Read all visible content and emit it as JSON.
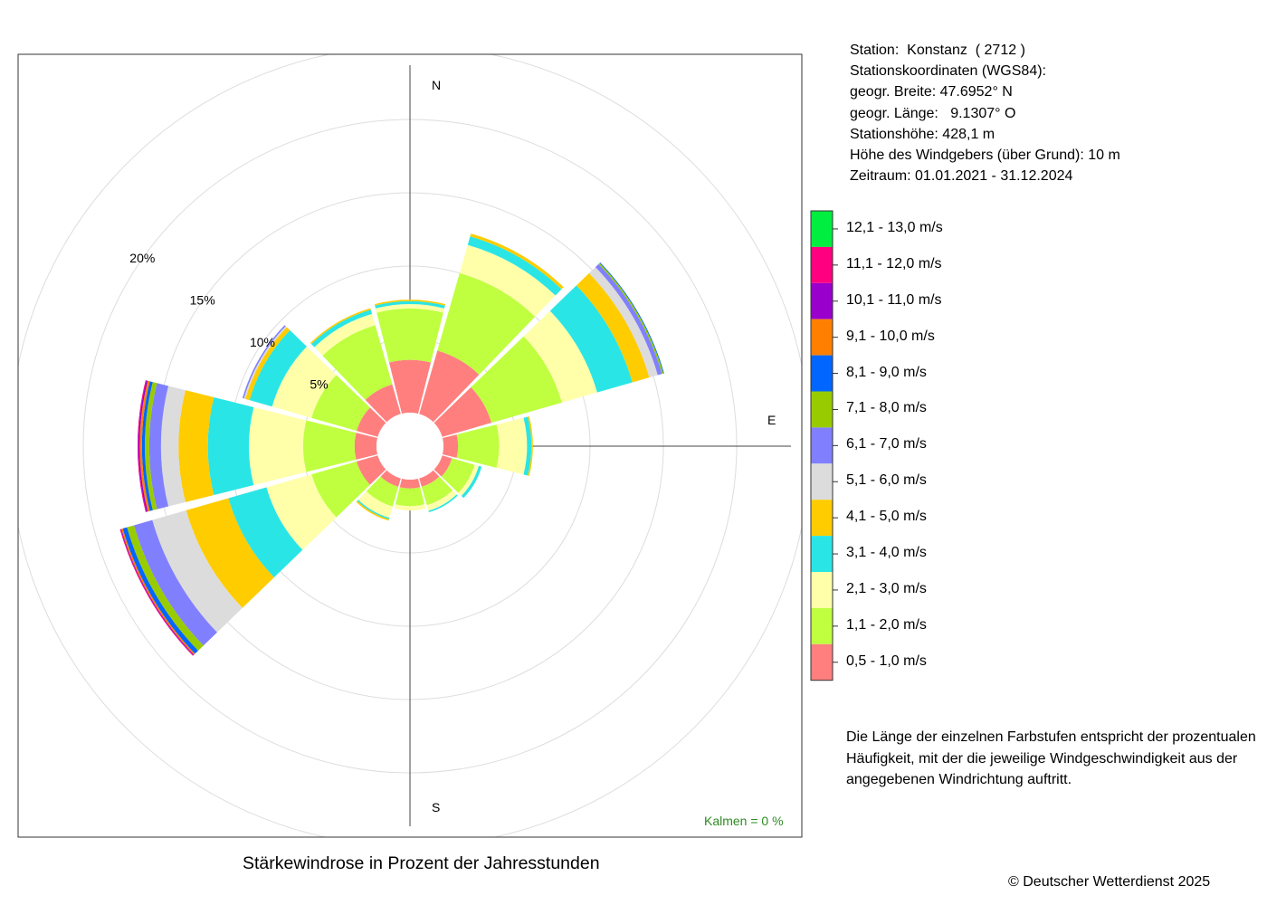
{
  "title": "Stärkewindrose in Prozent der Jahresstunden",
  "copyright": "© Deutscher Wetterdienst  2025",
  "calm": "Kalmen  =  0 %",
  "station": {
    "line1": "Station:  Konstanz  ( 2712 )",
    "line2": "Stationskoordinaten (WGS84):",
    "line3": "geogr. Breite: 47.6952° N",
    "line4": "geogr. Länge:   9.1307° O",
    "line5": "Stationshöhe: 428,1 m",
    "line6": "Höhe des Windgebers (über Grund): 10 m",
    "line7": "Zeitraum: 01.01.2021 - 31.12.2024"
  },
  "note": "Die Länge der einzelnen Farbstufen entspricht der prozentualen Häufigkeit, mit der die jeweilige Windgeschwindigkeit aus der angegebenen Windrichtung auftritt.",
  "compass": {
    "N": "N",
    "E": "E",
    "S": "S"
  },
  "chart_data": {
    "type": "wind-rose",
    "unit": "%",
    "ring_labels": [
      "5%",
      "10%",
      "15%",
      "20%"
    ],
    "rings": [
      5,
      10,
      15,
      20,
      25
    ],
    "directions": [
      0,
      30,
      60,
      90,
      120,
      150,
      180,
      210,
      240,
      270,
      300,
      330
    ],
    "classes": [
      {
        "label": "0,5 - 1,0 m/s",
        "color": "#FF7F7F"
      },
      {
        "label": "1,1 - 2,0 m/s",
        "color": "#BFFF3F"
      },
      {
        "label": "2,1 - 3,0 m/s",
        "color": "#FFFFAA"
      },
      {
        "label": "3,1 - 4,0 m/s",
        "color": "#2AE5E5"
      },
      {
        "label": "4,1 - 5,0 m/s",
        "color": "#FFCC00"
      },
      {
        "label": "5,1 - 6,0 m/s",
        "color": "#DCDCDC"
      },
      {
        "label": "6,1 - 7,0 m/s",
        "color": "#8080FF"
      },
      {
        "label": "7,1 - 8,0 m/s",
        "color": "#99CC00"
      },
      {
        "label": "8,1 - 9,0 m/s",
        "color": "#0066FF"
      },
      {
        "label": "9,1 - 10,0 m/s",
        "color": "#FF8000"
      },
      {
        "label": "10,1 - 11,0 m/s",
        "color": "#9900CC"
      },
      {
        "label": "11,1 - 12,0 m/s",
        "color": "#FF0080"
      },
      {
        "label": "12,1 - 13,0 m/s",
        "color": "#00EE40"
      }
    ],
    "values": [
      [
        3.6,
        3.5,
        0.3,
        0.2,
        0.1,
        0,
        0,
        0,
        0,
        0,
        0,
        0,
        0
      ],
      [
        4.5,
        5.5,
        2.0,
        0.6,
        0.2,
        0,
        0,
        0,
        0,
        0,
        0,
        0,
        0
      ],
      [
        3.5,
        5.0,
        2.5,
        2.5,
        1.2,
        0.6,
        0.3,
        0.1,
        0.05,
        0,
        0,
        0,
        0
      ],
      [
        1.0,
        2.8,
        1.9,
        0.3,
        0.1,
        0,
        0,
        0,
        0,
        0,
        0,
        0,
        0
      ],
      [
        0.7,
        1.6,
        0.3,
        0.2,
        0,
        0,
        0,
        0,
        0,
        0,
        0,
        0,
        0
      ],
      [
        0.6,
        1.3,
        0.4,
        0.1,
        0,
        0,
        0,
        0,
        0,
        0,
        0,
        0,
        0
      ],
      [
        0.6,
        1.2,
        0.3,
        0,
        0,
        0,
        0,
        0,
        0,
        0,
        0,
        0,
        0
      ],
      [
        0.6,
        1.4,
        0.8,
        0.1,
        0.1,
        0,
        0,
        0,
        0,
        0,
        0,
        0,
        0
      ],
      [
        1.5,
        3.2,
        3.2,
        2.7,
        3.0,
        2.4,
        1.3,
        0.5,
        0.3,
        0.1,
        0.05,
        0.05,
        0
      ],
      [
        1.5,
        3.5,
        3.7,
        2.8,
        2.0,
        1.2,
        0.8,
        0.3,
        0.2,
        0.15,
        0.1,
        0.05,
        0
      ],
      [
        1.5,
        3.2,
        2.8,
        1.6,
        0.3,
        0.1,
        0.1,
        0,
        0,
        0,
        0,
        0,
        0
      ],
      [
        2.1,
        4.2,
        0.8,
        0.3,
        0.1,
        0,
        0,
        0,
        0,
        0,
        0,
        0,
        0
      ]
    ]
  }
}
